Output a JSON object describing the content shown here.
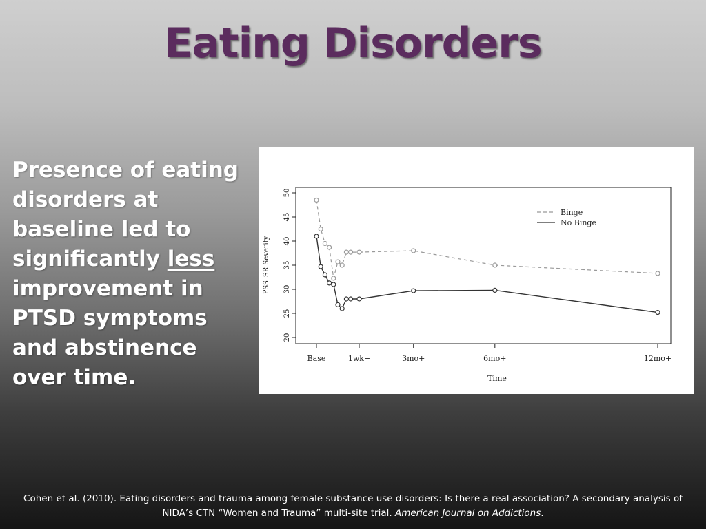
{
  "slide": {
    "title": "Eating Disorders",
    "body_pre": "Presence of eating disorders at baseline led to significantly ",
    "body_emph": "less",
    "body_post": " improvement in PTSD symptoms and abstinence over time.",
    "citation_main": "Cohen et al.  (2010). Eating disorders and trauma among female substance use disorders: Is there a real association? A secondary analysis of NIDA’s CTN “Women and Trauma” multi-site trial.  ",
    "citation_journal": "American Journal on Addictions",
    "citation_end": "."
  },
  "chart_data": {
    "type": "line",
    "xlabel": "Time",
    "ylabel": "PSS_SR Severity",
    "x": [
      0,
      0.1,
      0.2,
      0.3,
      0.4,
      0.5,
      0.6,
      0.7,
      0.8,
      1,
      3,
      6,
      12
    ],
    "x_ticks": [
      {
        "at": 0,
        "label": "Base"
      },
      {
        "at": 1,
        "label": "1wk+"
      },
      {
        "at": 3,
        "label": "3mo+"
      },
      {
        "at": 6,
        "label": "6mo+"
      },
      {
        "at": 12,
        "label": "12mo+"
      }
    ],
    "ylim": [
      20,
      50
    ],
    "y_ticks": [
      20,
      25,
      30,
      35,
      40,
      45,
      50
    ],
    "legend_position": "top-right",
    "series": [
      {
        "name": "Binge",
        "style": "dashed",
        "color": "#999999",
        "values": [
          48.5,
          42.5,
          39.5,
          38.7,
          32.3,
          35.7,
          35.0,
          37.7,
          37.7,
          37.7,
          38.0,
          35.0,
          33.3
        ]
      },
      {
        "name": "No Binge",
        "style": "solid",
        "color": "#333333",
        "values": [
          41.0,
          34.7,
          33.0,
          31.3,
          31.0,
          26.8,
          26.0,
          28.0,
          28.0,
          28.0,
          29.7,
          29.8,
          25.2
        ]
      }
    ]
  }
}
